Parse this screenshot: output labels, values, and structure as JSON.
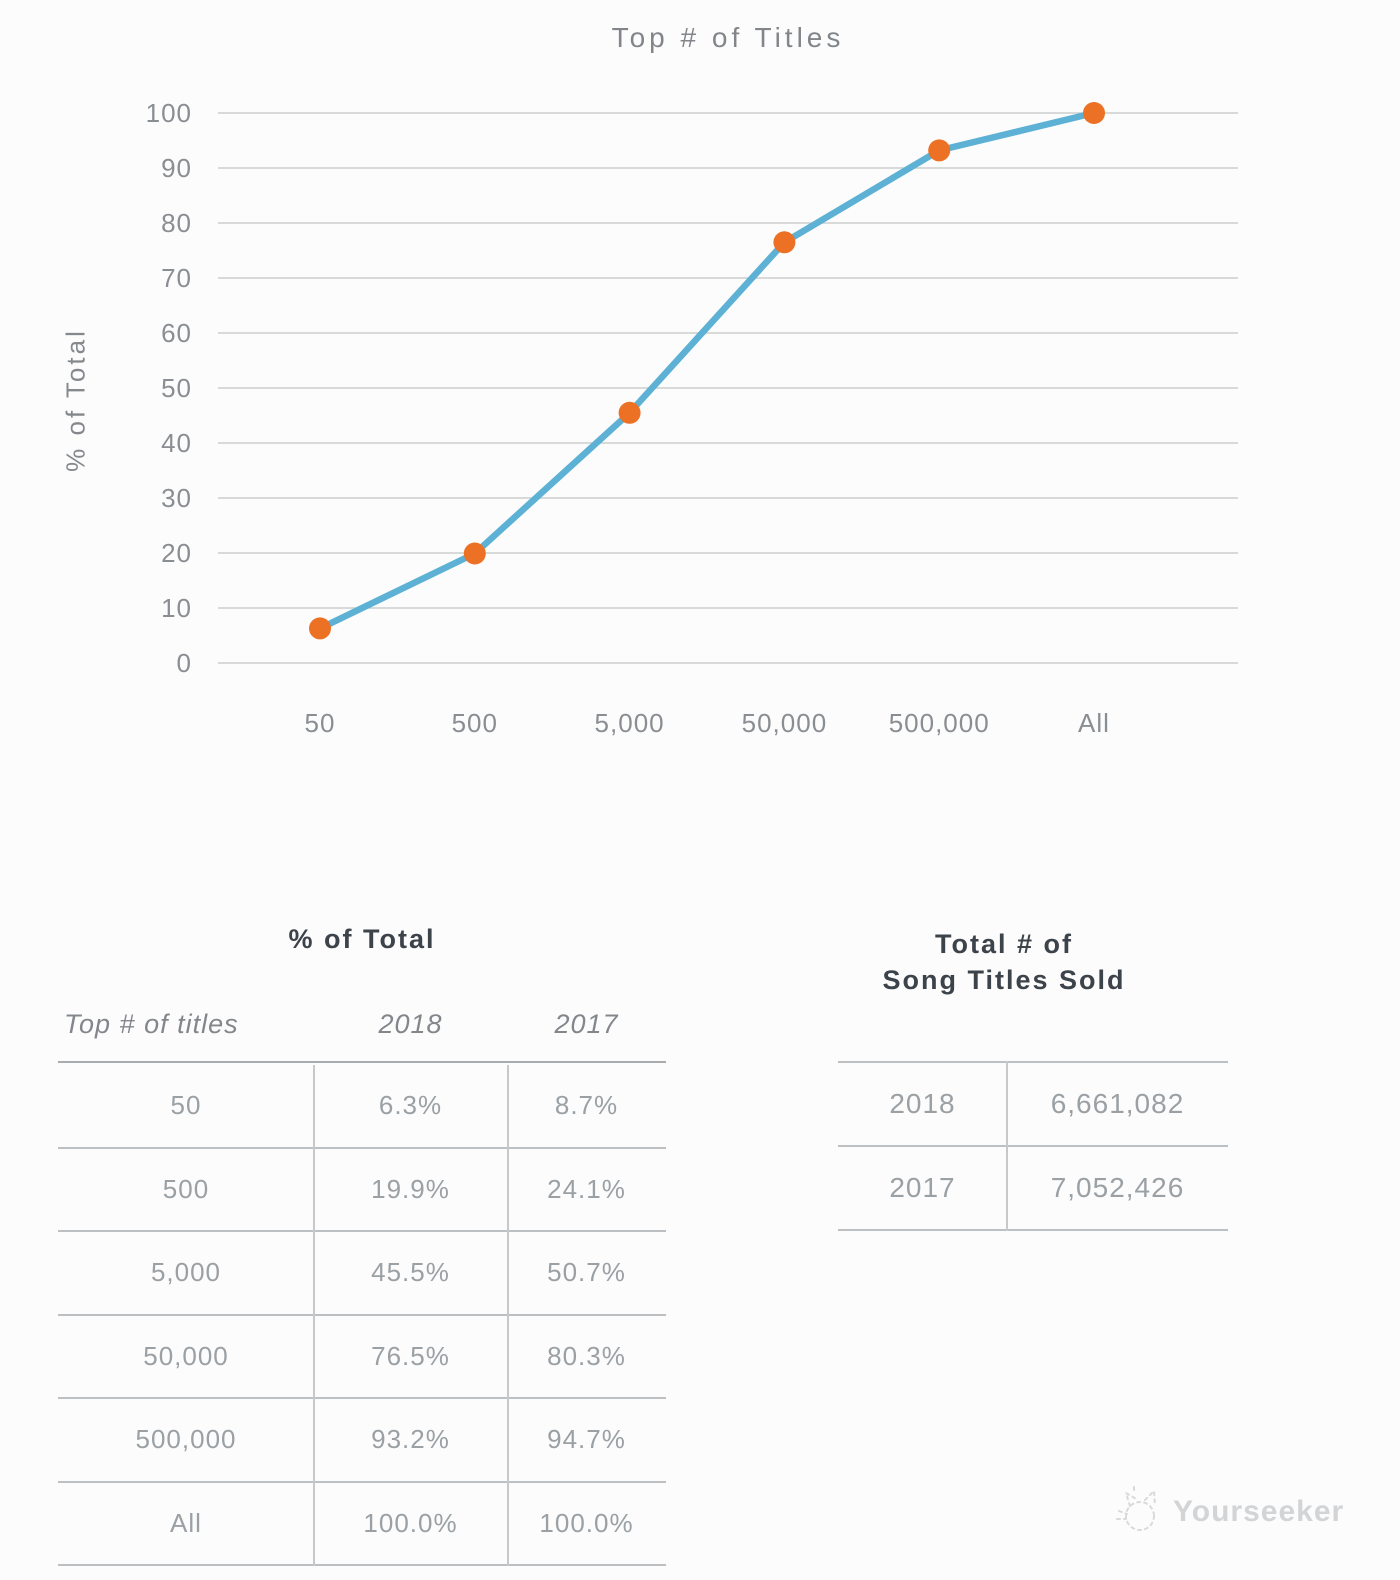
{
  "chart": {
    "title": "Top # of Titles",
    "y_axis_label": "% of Total"
  },
  "chart_data": {
    "type": "line",
    "title": "Top # of Titles",
    "xlabel": "",
    "ylabel": "% of Total",
    "categories": [
      "50",
      "500",
      "5,000",
      "50,000",
      "500,000",
      "All"
    ],
    "series": [
      {
        "name": "2018",
        "values": [
          6.3,
          19.9,
          45.5,
          76.5,
          93.2,
          100.0
        ]
      }
    ],
    "ylim": [
      0,
      100
    ],
    "yticks": [
      0,
      10,
      20,
      30,
      40,
      50,
      60,
      70,
      80,
      90,
      100
    ],
    "grid": "horizontal-only",
    "legend": "none",
    "line_color": "#5cb1d4",
    "marker_color": "#ec7124",
    "grid_color": "#cccecf"
  },
  "percent_table": {
    "title": "% of Total",
    "headers": [
      "Top # of titles",
      "2018",
      "2017"
    ],
    "rows": [
      [
        "50",
        "6.3%",
        "8.7%"
      ],
      [
        "500",
        "19.9%",
        "24.1%"
      ],
      [
        "5,000",
        "45.5%",
        "50.7%"
      ],
      [
        "50,000",
        "76.5%",
        "80.3%"
      ],
      [
        "500,000",
        "93.2%",
        "94.7%"
      ],
      [
        "All",
        "100.0%",
        "100.0%"
      ]
    ]
  },
  "totals_table": {
    "title_line1": "Total # of",
    "title_line2": "Song Titles Sold",
    "rows": [
      [
        "2018",
        "6,661,082"
      ],
      [
        "2017",
        "7,052,426"
      ]
    ]
  },
  "watermark": {
    "icon": "cat-icon",
    "label": "Yourseeker"
  },
  "ui_colors": {
    "background": "#fcfcfc",
    "muted_text": "#8a8e92",
    "dark_text": "#3d434a",
    "watermark_text": "#d2d4d6"
  }
}
